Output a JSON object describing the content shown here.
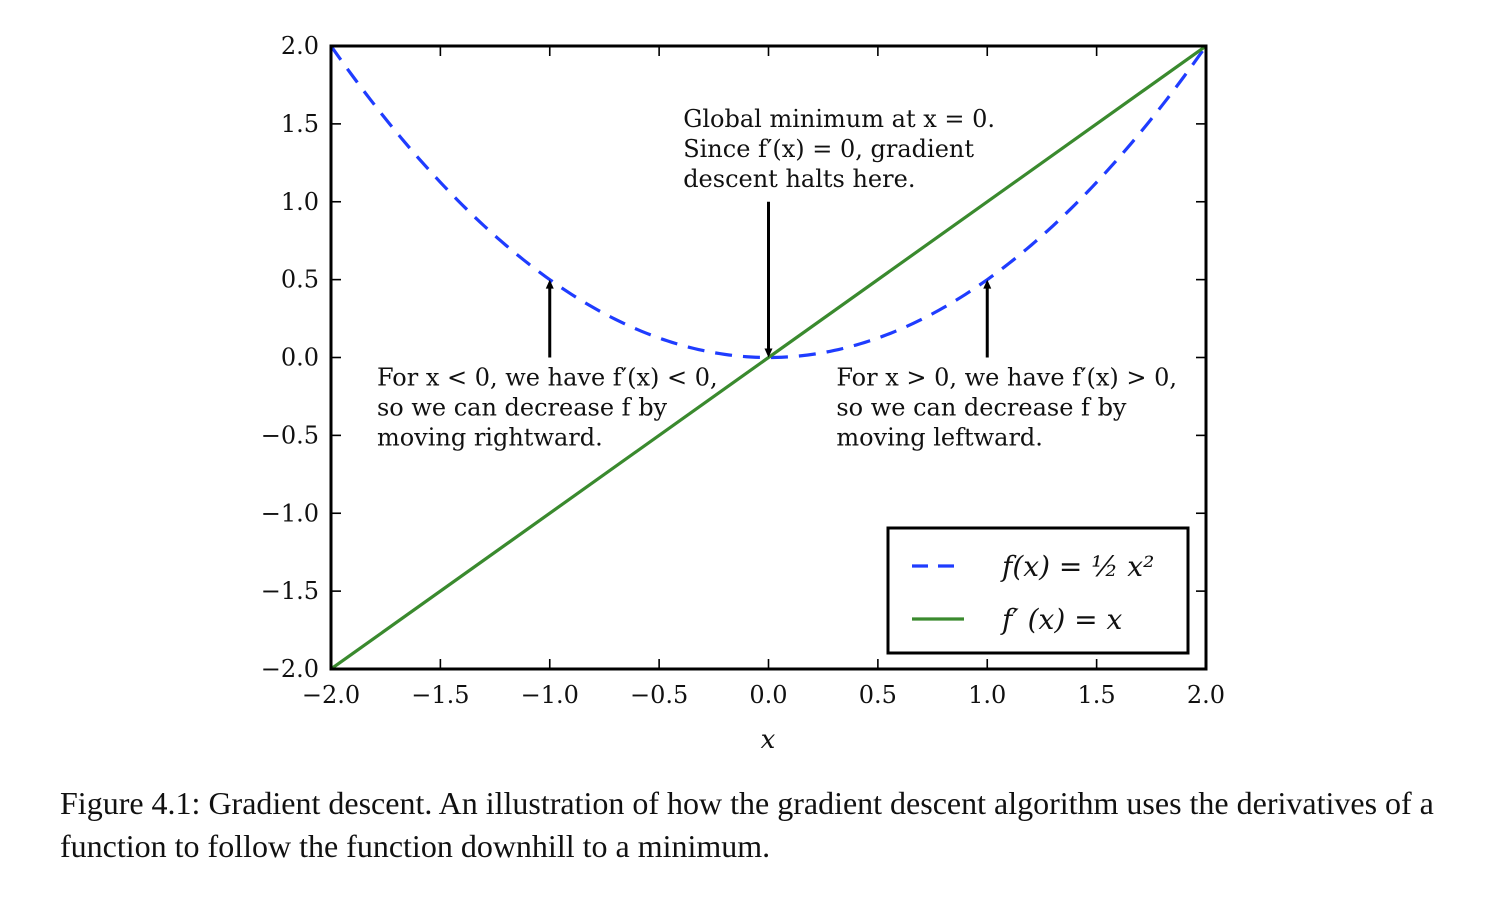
{
  "chart_data": {
    "type": "line",
    "xlabel": "x",
    "ylabel": "",
    "xlim": [
      -2.0,
      2.0
    ],
    "ylim": [
      -2.0,
      2.0
    ],
    "x_ticks": [
      -2.0,
      -1.5,
      -1.0,
      -0.5,
      0.0,
      0.5,
      1.0,
      1.5,
      2.0
    ],
    "x_tick_labels": [
      "−2.0",
      "−1.5",
      "−1.0",
      "−0.5",
      "0.0",
      "0.5",
      "1.0",
      "1.5",
      "2.0"
    ],
    "y_ticks": [
      2.0,
      1.5,
      1.0,
      0.5,
      0.0,
      -0.5,
      -1.0,
      -1.5,
      -2.0
    ],
    "y_tick_labels": [
      "2.0",
      "1.5",
      "1.0",
      "0.5",
      "0.0",
      "−0.5",
      "−1.0",
      "−1.5",
      "−2.0"
    ],
    "grid": false,
    "legend_position": "lower-right",
    "series": [
      {
        "name": "f(x) = ½ x²",
        "style": "dashed",
        "color": "#1f3cff",
        "x": [
          -2.0,
          -1.75,
          -1.5,
          -1.25,
          -1.0,
          -0.75,
          -0.5,
          -0.25,
          0.0,
          0.25,
          0.5,
          0.75,
          1.0,
          1.25,
          1.5,
          1.75,
          2.0
        ],
        "y": [
          2.0,
          1.53,
          1.125,
          0.78,
          0.5,
          0.28,
          0.125,
          0.03,
          0.0,
          0.03,
          0.125,
          0.28,
          0.5,
          0.78,
          1.125,
          1.53,
          2.0
        ]
      },
      {
        "name": "f′ (x) = x",
        "style": "solid",
        "color": "#3a8a2e",
        "x": [
          -2.0,
          2.0
        ],
        "y": [
          -2.0,
          2.0
        ]
      }
    ],
    "annotations": [
      {
        "lines": [
          "Global minimum at x = 0.",
          "Since f′(x) = 0, gradient",
          "descent halts here."
        ],
        "arrow_from": [
          0.0,
          1.0
        ],
        "arrow_to": [
          0.0,
          0.0
        ],
        "text_at": [
          -0.39,
          1.48
        ]
      },
      {
        "lines": [
          "For x < 0, we have f′(x) < 0,",
          "so we can decrease f by",
          "moving rightward."
        ],
        "arrow_from": [
          -1.0,
          0.0
        ],
        "arrow_to": [
          -1.0,
          0.5
        ],
        "text_at": [
          -1.79,
          -0.18
        ]
      },
      {
        "lines": [
          "For x > 0, we have f′(x) > 0,",
          "so we can decrease f by",
          "moving leftward."
        ],
        "arrow_from": [
          1.0,
          0.0
        ],
        "arrow_to": [
          1.0,
          0.5
        ],
        "text_at": [
          0.31,
          -0.18
        ]
      }
    ]
  },
  "caption": "Figure 4.1: Gradient descent. An illustration of how the gradient descent algorithm uses the derivatives of a function to follow the function downhill to a minimum."
}
